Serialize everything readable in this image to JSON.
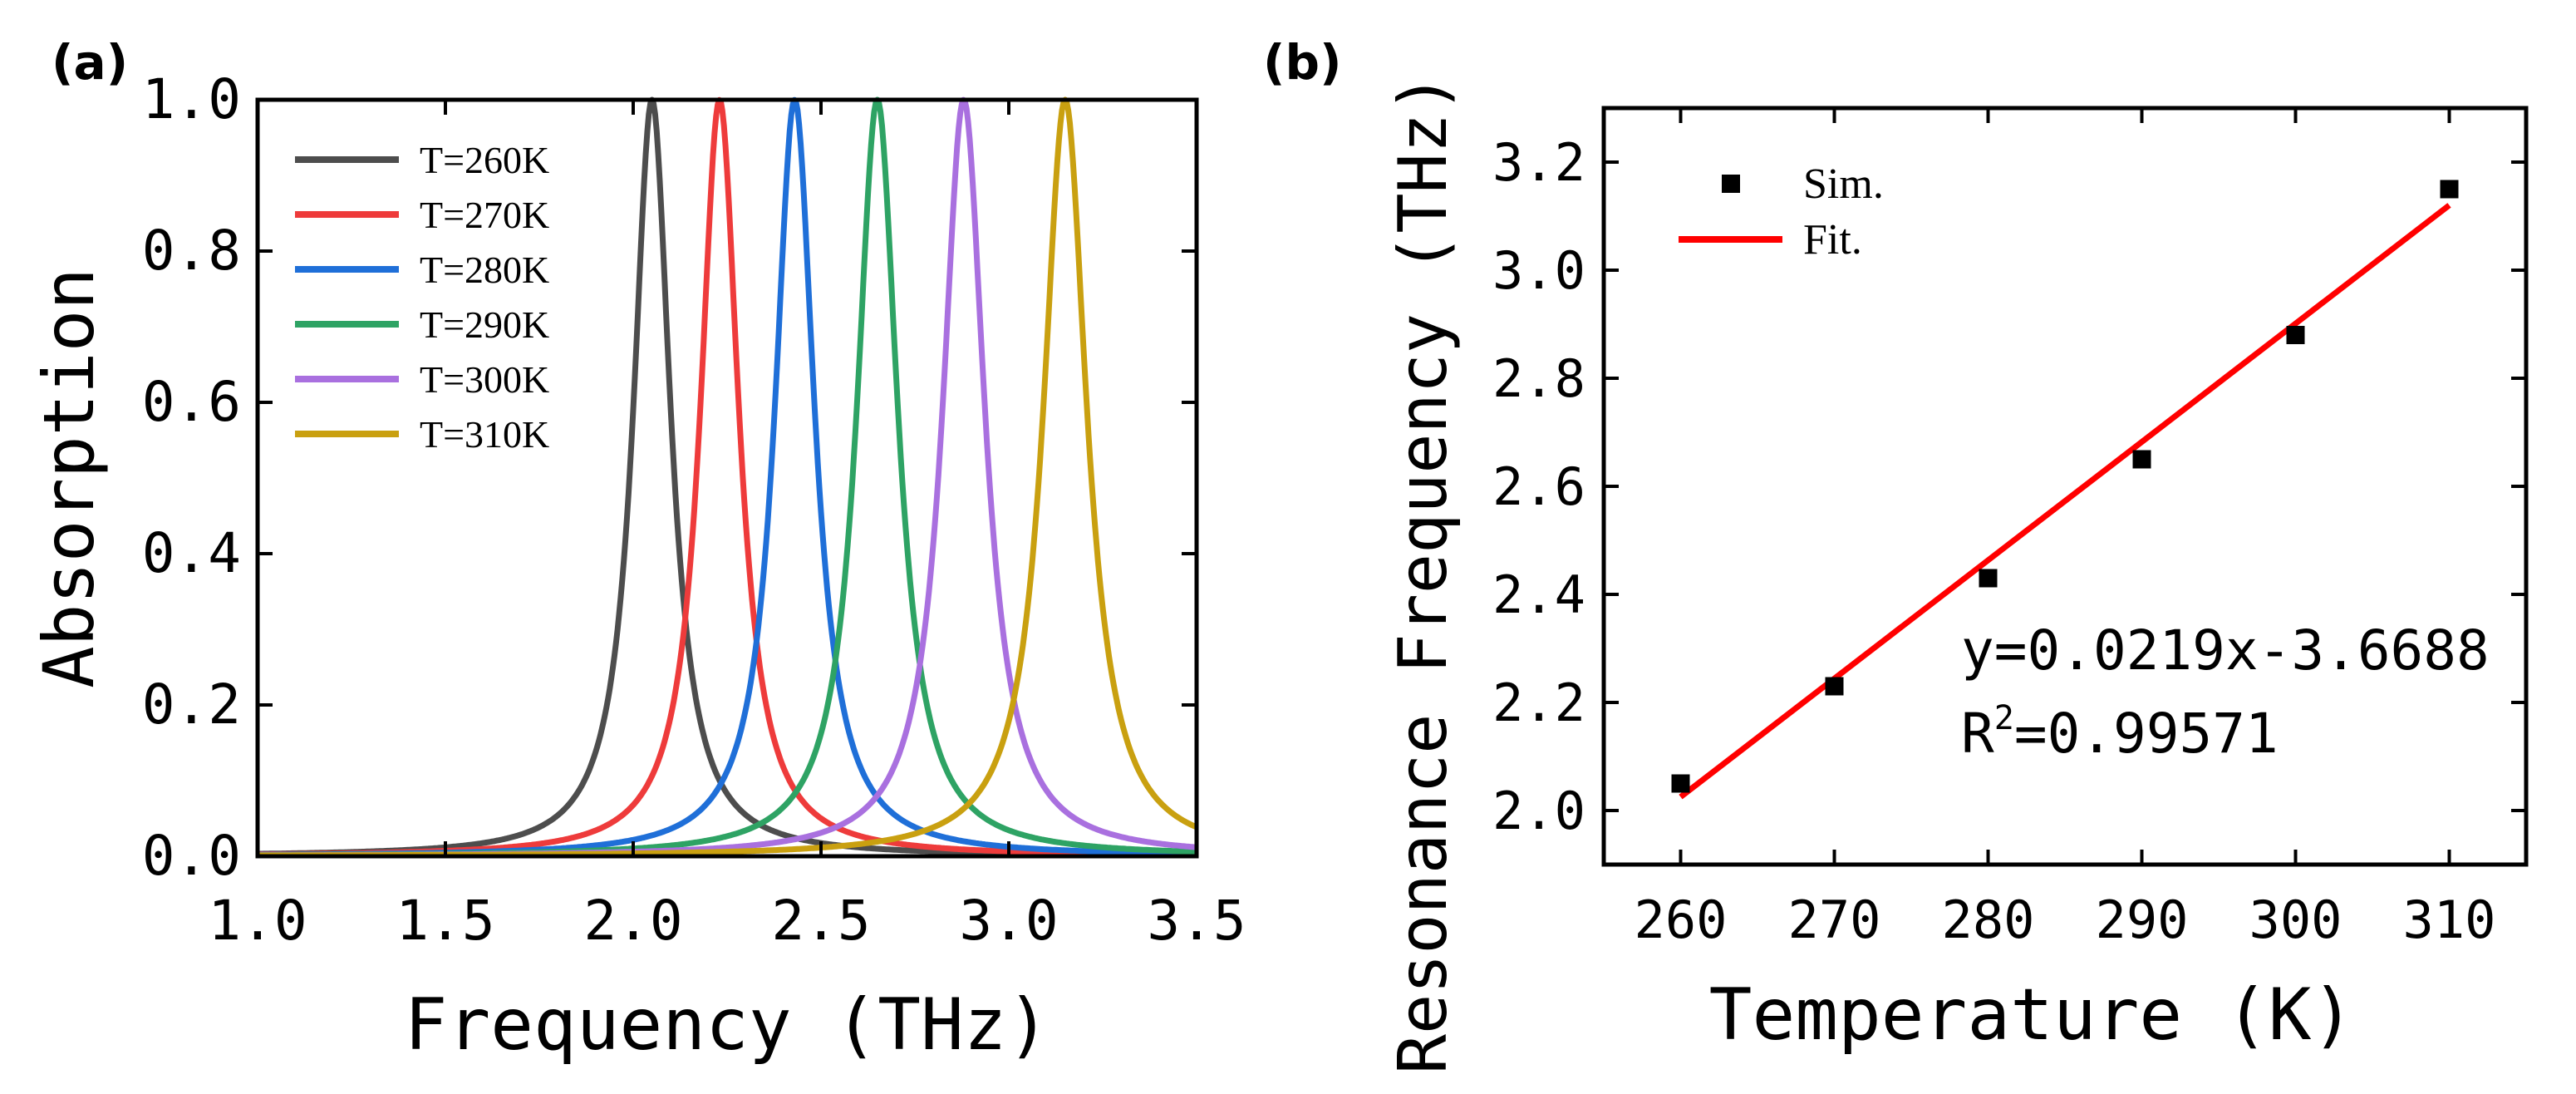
{
  "chart_data": [
    {
      "type": "line",
      "panel_label": "(a)",
      "xlabel": "Frequency (THz)",
      "ylabel": "Absorption",
      "xlim": [
        1.0,
        3.5
      ],
      "ylim": [
        0.0,
        1.0
      ],
      "xticks": [
        "1.0",
        "1.5",
        "2.0",
        "2.5",
        "3.0",
        "3.5"
      ],
      "yticks": [
        "0.0",
        "0.2",
        "0.4",
        "0.6",
        "0.8",
        "1.0"
      ],
      "legend_position": "top-left",
      "line_shape": "lorentzian",
      "series": [
        {
          "name": "T=260K",
          "color": "#4d4d4d",
          "peak_x": 2.05,
          "peak_y": 1.0,
          "half_width": 0.06
        },
        {
          "name": "T=270K",
          "color": "#ee3b3b",
          "peak_x": 2.23,
          "peak_y": 1.0,
          "half_width": 0.062
        },
        {
          "name": "T=280K",
          "color": "#1f6fd8",
          "peak_x": 2.43,
          "peak_y": 1.0,
          "half_width": 0.064
        },
        {
          "name": "T=290K",
          "color": "#2ea364",
          "peak_x": 2.65,
          "peak_y": 1.0,
          "half_width": 0.066
        },
        {
          "name": "T=300K",
          "color": "#a970df",
          "peak_x": 2.88,
          "peak_y": 1.0,
          "half_width": 0.068
        },
        {
          "name": "T=310K",
          "color": "#c9a010",
          "peak_x": 3.15,
          "peak_y": 1.0,
          "half_width": 0.07
        }
      ]
    },
    {
      "type": "scatter",
      "panel_label": "(b)",
      "xlabel": "Temperature (K)",
      "ylabel": "Resonance Frequency (THz)",
      "xlim": [
        255,
        315
      ],
      "ylim": [
        1.9,
        3.3
      ],
      "xticks": [
        "260",
        "270",
        "280",
        "290",
        "300",
        "310"
      ],
      "yticks": [
        "2.0",
        "2.2",
        "2.4",
        "2.6",
        "2.8",
        "3.0",
        "3.2"
      ],
      "legend_position": "top-left",
      "series": [
        {
          "name": "Sim.",
          "kind": "points",
          "color": "#000000",
          "x": [
            260,
            270,
            280,
            290,
            300,
            310
          ],
          "y": [
            2.05,
            2.23,
            2.43,
            2.65,
            2.88,
            3.15
          ]
        },
        {
          "name": "Fit.",
          "kind": "line",
          "color": "#ff0000",
          "x": [
            260,
            310
          ],
          "y": [
            2.0252,
            3.1202
          ]
        }
      ],
      "annotations": {
        "equation": "y=0.0219x-3.6688",
        "r2_prefix": "R",
        "r2_sup": "2",
        "r2_value": "=0.99571"
      }
    }
  ]
}
